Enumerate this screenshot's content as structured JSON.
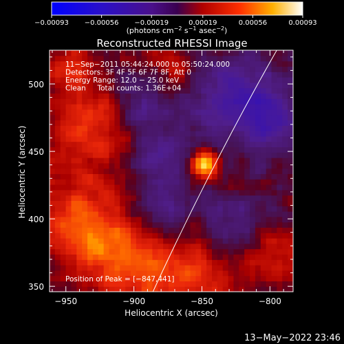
{
  "chart_data": {
    "type": "heatmap",
    "title": "Reconstructed RHESSI Image",
    "xlabel": "Heliocentric X (arcsec)",
    "ylabel": "Heliocentric Y (arcsec)",
    "xlim": [
      -962,
      -783
    ],
    "ylim": [
      346,
      525
    ],
    "x_ticks": [
      -950,
      -900,
      -850,
      -800
    ],
    "x_tick_labels": [
      "−950",
      "−900",
      "−850",
      "−800"
    ],
    "y_ticks": [
      350,
      400,
      450,
      500
    ],
    "y_tick_labels": [
      "350",
      "400",
      "450",
      "500"
    ],
    "colorbar": {
      "min": -0.00093,
      "max": 0.00093,
      "ticks": [
        -0.00093,
        -0.00056,
        -0.00019,
        0.00019,
        0.00056,
        0.00093
      ],
      "tick_labels": [
        "−0.00093",
        "−0.00056",
        "−0.00019",
        "0.00019",
        "0.00056",
        "0.00093"
      ],
      "unit_text": "(photons cm",
      "unit_sup1": "−2",
      "unit_mid": " s",
      "unit_sup2": "−1",
      "unit_end": " asec",
      "unit_sup3": "−2",
      "unit_close": ")"
    },
    "annotations": [
      "11−Sep−2011 05:44:24.000 to 05:50:24.000",
      "Detectors: 3F 4F 5F 6F 7F 8F, Att 0",
      "Energy Range: 12.0 − 25.0 keV",
      "Clean     Total counts: 1.36E+04"
    ],
    "peak_label": "Position of Peak = [−847,441]",
    "peak": [
      -847,
      441
    ],
    "limb_line": [
      [
        -886,
        346
      ],
      [
        -843,
        440
      ],
      [
        -795,
        525
      ]
    ],
    "sources": [
      {
        "x": -848,
        "y": 441,
        "sigma": 7,
        "amp": 1.0
      },
      {
        "x": -935,
        "y": 400,
        "sigma": 26,
        "amp": 0.5
      },
      {
        "x": -905,
        "y": 365,
        "sigma": 24,
        "amp": 0.45
      },
      {
        "x": -930,
        "y": 470,
        "sigma": 22,
        "amp": 0.42
      },
      {
        "x": -860,
        "y": 358,
        "sigma": 20,
        "amp": 0.42
      },
      {
        "x": -800,
        "y": 375,
        "sigma": 18,
        "amp": 0.38
      },
      {
        "x": -950,
        "y": 515,
        "sigma": 14,
        "amp": 0.35
      },
      {
        "x": -870,
        "y": 515,
        "sigma": 16,
        "amp": 0.3
      },
      {
        "x": -820,
        "y": 420,
        "sigma": 10,
        "amp": 0.25
      }
    ],
    "sinks": [
      {
        "x": -880,
        "y": 450,
        "sigma": 16,
        "amp": -0.35
      },
      {
        "x": -830,
        "y": 495,
        "sigma": 22,
        "amp": -0.45
      },
      {
        "x": -800,
        "y": 475,
        "sigma": 18,
        "amp": -0.4
      },
      {
        "x": -880,
        "y": 410,
        "sigma": 16,
        "amp": -0.35
      },
      {
        "x": -820,
        "y": 400,
        "sigma": 18,
        "amp": -0.35
      },
      {
        "x": -895,
        "y": 488,
        "sigma": 14,
        "amp": -0.32
      }
    ]
  },
  "timestamp": "13−May−2022 23:46"
}
